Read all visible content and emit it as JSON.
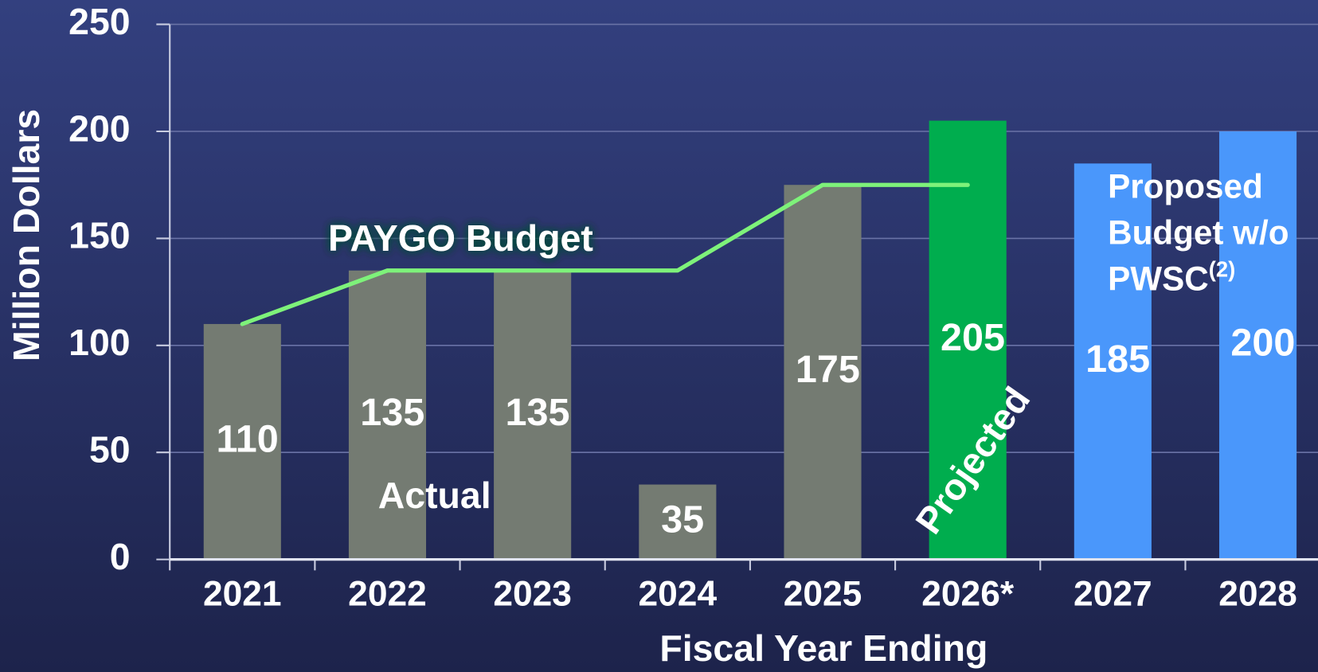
{
  "chart_data": {
    "type": "bar",
    "x_label": "Fiscal Year Ending",
    "y_label": "Million Dollars",
    "categories": [
      "2021",
      "2022",
      "2023",
      "2024",
      "2025",
      "2026*",
      "2027",
      "2028"
    ],
    "series": [
      {
        "name": "Budget",
        "type": "bar",
        "values": [
          110,
          135,
          135,
          35,
          175,
          205,
          185,
          200
        ],
        "colors": [
          "#747b72",
          "#747b72",
          "#747b72",
          "#747b72",
          "#747b72",
          "#00ad4e",
          "#4a97fb",
          "#4a97fb"
        ]
      },
      {
        "name": "PAYGO Budget",
        "type": "line",
        "color": "#7ef27a",
        "values": [
          110,
          135,
          135,
          135,
          175,
          175,
          null,
          null
        ]
      }
    ],
    "ylim": [
      0,
      250
    ],
    "yticks": [
      0,
      50,
      100,
      150,
      200,
      250
    ],
    "grid": true,
    "annotations": {
      "actual": "Actual",
      "projected": "Projected",
      "proposed": [
        "Proposed",
        "Budget w/o",
        "PWSC"
      ],
      "proposed_superscript": "(2)"
    }
  }
}
